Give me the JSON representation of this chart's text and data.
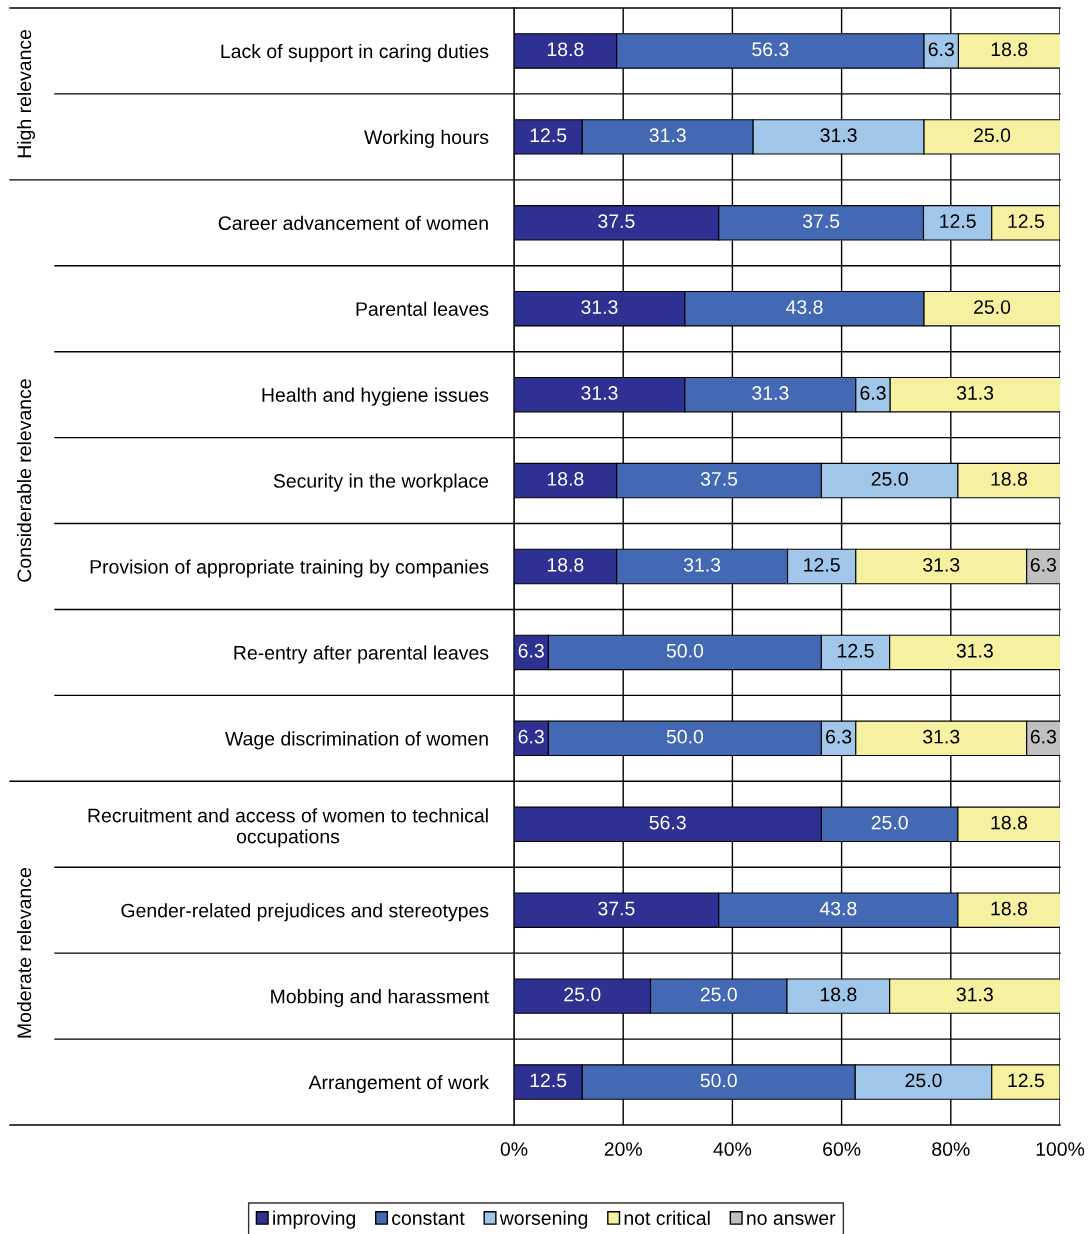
{
  "chart_data": {
    "type": "bar",
    "orientation": "horizontal",
    "stacked": true,
    "grid": "x",
    "legend": "bottom",
    "categories": [
      "Lack of support in caring duties",
      "Working hours",
      "Career advancement of women",
      "Parental leaves",
      "Health and hygiene issues",
      "Security in the workplace",
      "Provision of appropriate training by companies",
      "Re-entry after parental leaves",
      "Wage discrimination of women",
      "Recruitment and access of women to technical\noccupations",
      "Gender-related prejudices and stereotypes",
      "Mobbing and harassment",
      "Arrangement of work"
    ],
    "series": [
      {
        "name": "improving",
        "color": "#2e3192",
        "values": [
          18.8,
          12.5,
          37.5,
          31.3,
          31.3,
          18.8,
          18.8,
          6.3,
          6.3,
          56.3,
          37.5,
          25,
          12.5
        ],
        "value_labels": [
          "18.8",
          "12.5",
          "37.5",
          "31.3",
          "31.3",
          "18.8",
          "18.8",
          "6.3",
          "6.3",
          "56.3",
          "37.5",
          "25.0",
          "12.5"
        ]
      },
      {
        "name": "constant",
        "color": "#4368b4",
        "values": [
          56.3,
          31.3,
          37.5,
          43.8,
          31.3,
          37.5,
          31.3,
          50,
          50,
          25,
          43.8,
          25,
          50
        ],
        "value_labels": [
          "56.3",
          "31.3",
          "37.5",
          "43.8",
          "31.3",
          "37.5",
          "31.3",
          "50.0",
          "50.0",
          "25.0",
          "43.8",
          "25.0",
          "50.0"
        ]
      },
      {
        "name": "worsening",
        "color": "#a0c6ea",
        "values": [
          6.3,
          31.3,
          12.5,
          null,
          6.3,
          25,
          12.5,
          12.5,
          6.3,
          null,
          null,
          18.8,
          25
        ],
        "value_labels": [
          "6.3",
          "31.3",
          "12.5",
          null,
          "6.3",
          "25.0",
          "12.5",
          "12.5",
          "6.3",
          null,
          null,
          "18.8",
          "25.0"
        ]
      },
      {
        "name": "not critical",
        "color": "#f6f1a0",
        "values": [
          18.8,
          25,
          12.5,
          25,
          31.3,
          18.8,
          31.3,
          31.3,
          31.3,
          18.8,
          18.8,
          31.3,
          12.5
        ],
        "value_labels": [
          "18.8",
          "25.0",
          "12.5",
          "25.0",
          "31.3",
          "18.8",
          "31.3",
          "31.3",
          "31.3",
          "18.8",
          "18.8",
          "31.3",
          "12.5"
        ]
      },
      {
        "name": "no answer",
        "color": "#c0c0c0",
        "values": [
          null,
          null,
          null,
          null,
          null,
          null,
          6.3,
          null,
          6.3,
          null,
          null,
          null,
          null
        ],
        "value_labels": [
          null,
          null,
          null,
          null,
          null,
          null,
          "6.3",
          null,
          "6.3",
          null,
          null,
          null,
          null
        ]
      }
    ],
    "xlim": [
      0,
      100
    ],
    "xticks": [
      {
        "value": 0,
        "label": "0%"
      },
      {
        "value": 20,
        "label": "20%"
      },
      {
        "value": 40,
        "label": "40%"
      },
      {
        "value": 60,
        "label": "60%"
      },
      {
        "value": 80,
        "label": "80%"
      },
      {
        "value": 100,
        "label": "100%"
      }
    ],
    "annotations": [
      "High relevance",
      "Considerable relevance",
      "Moderate relevance"
    ]
  }
}
